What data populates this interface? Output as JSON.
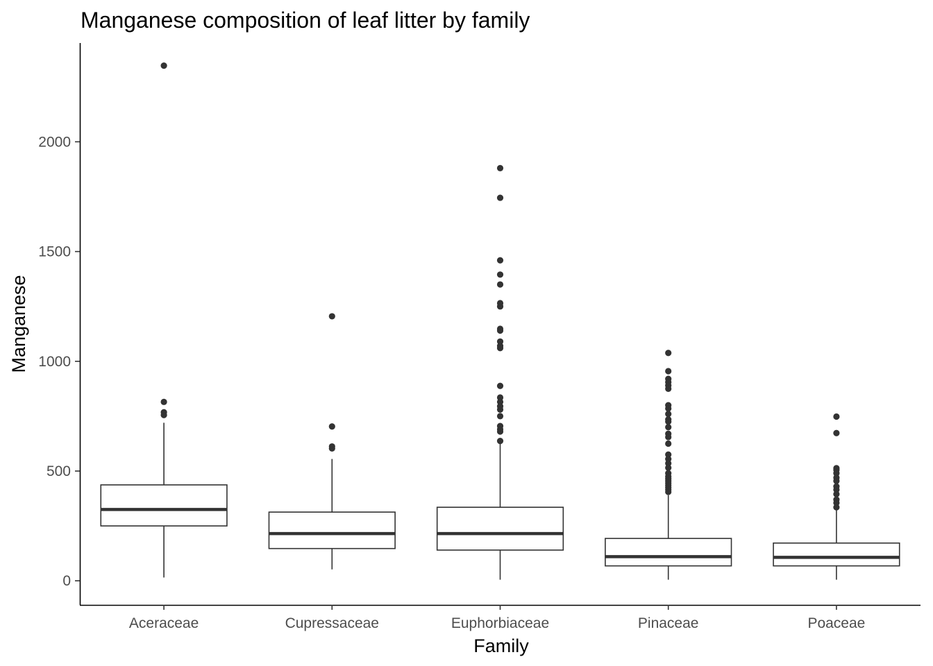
{
  "chart_data": {
    "type": "boxplot",
    "title": "Manganese composition of leaf litter by family",
    "xlabel": "Family",
    "ylabel": "Manganese",
    "ylim": [
      -110,
      2450
    ],
    "yticks": [
      0,
      500,
      1000,
      1500,
      2000
    ],
    "grid": false,
    "colors": {
      "stroke": "#333333",
      "axis": "#000000",
      "tick_text": "#4d4d4d",
      "background": "#ffffff"
    },
    "categories": [
      "Aceraceae",
      "Cupressaceae",
      "Euphorbiaceae",
      "Pinaceae",
      "Poaceae"
    ],
    "boxes": [
      {
        "category": "Aceraceae",
        "whisker_low": 15,
        "q1": 250,
        "median": 325,
        "q3": 437,
        "whisker_high": 720,
        "outliers": [
          2347,
          815,
          768,
          755
        ]
      },
      {
        "category": "Cupressaceae",
        "whisker_low": 52,
        "q1": 147,
        "median": 215,
        "q3": 313,
        "whisker_high": 555,
        "outliers": [
          1205,
          703,
          612,
          603
        ]
      },
      {
        "category": "Euphorbiaceae",
        "whisker_low": 5,
        "q1": 140,
        "median": 215,
        "q3": 335,
        "whisker_high": 625,
        "outliers": [
          1880,
          1745,
          1460,
          1395,
          1350,
          1265,
          1250,
          1148,
          1140,
          1090,
          1070,
          1060,
          888,
          835,
          815,
          795,
          780,
          750,
          705,
          690,
          680,
          637
        ]
      },
      {
        "category": "Pinaceae",
        "whisker_low": 5,
        "q1": 68,
        "median": 110,
        "q3": 193,
        "whisker_high": 390,
        "outliers": [
          1038,
          955,
          920,
          905,
          890,
          875,
          800,
          785,
          760,
          735,
          725,
          700,
          670,
          655,
          625,
          575,
          555,
          535,
          515,
          490,
          475,
          465,
          455,
          445,
          435,
          425,
          415,
          405
        ]
      },
      {
        "category": "Poaceae",
        "whisker_low": 5,
        "q1": 68,
        "median": 107,
        "q3": 172,
        "whisker_high": 325,
        "outliers": [
          748,
          673,
          513,
          505,
          490,
          470,
          455,
          430,
          415,
          395,
          370,
          355,
          335
        ]
      }
    ]
  }
}
